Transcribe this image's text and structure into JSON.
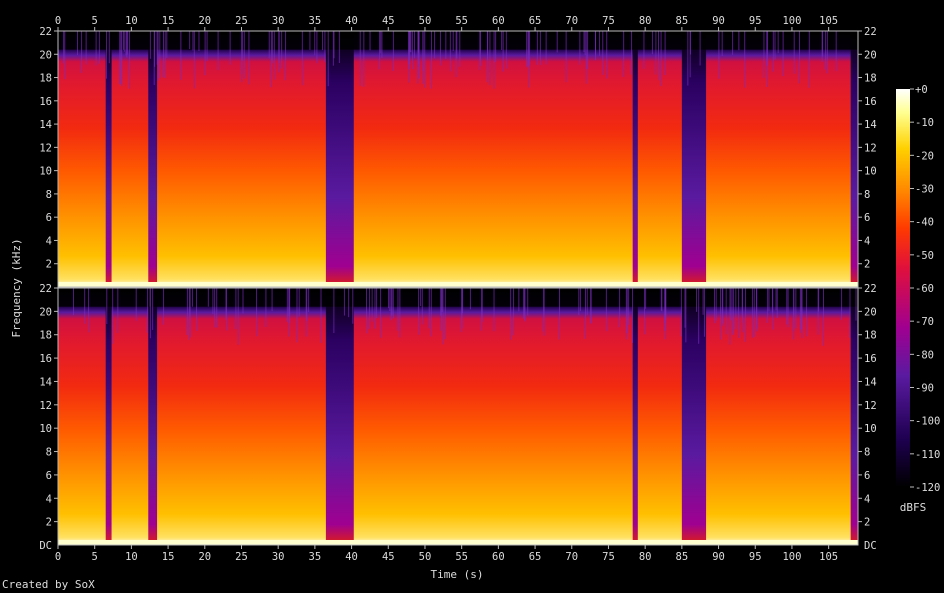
{
  "credit": "Created by SoX",
  "chart_data": {
    "type": "heatmap",
    "title": "",
    "xlabel": "Time (s)",
    "ylabel": "Frequency (kHz)",
    "colorbar_label": "dBFS",
    "xlim": [
      0,
      109
    ],
    "ylim_khz": [
      0,
      22
    ],
    "x_ticks": [
      0,
      5,
      10,
      15,
      20,
      25,
      30,
      35,
      40,
      45,
      50,
      55,
      60,
      65,
      70,
      75,
      80,
      85,
      90,
      95,
      100,
      105
    ],
    "y_ticks": [
      {
        "value": 22,
        "label": "22"
      },
      {
        "value": 20,
        "label": "20"
      },
      {
        "value": 18,
        "label": "18"
      },
      {
        "value": 16,
        "label": "16"
      },
      {
        "value": 14,
        "label": "14"
      },
      {
        "value": 12,
        "label": "12"
      },
      {
        "value": 10,
        "label": "10"
      },
      {
        "value": 8,
        "label": "8"
      },
      {
        "value": 6,
        "label": "6"
      },
      {
        "value": 4,
        "label": "4"
      },
      {
        "value": 2,
        "label": "2"
      }
    ],
    "y_bottom_label": "DC",
    "colorbar_range": [
      -120,
      0
    ],
    "colorbar_ticks": [
      {
        "value": 0,
        "label": "+0"
      },
      {
        "value": -10,
        "label": "-10"
      },
      {
        "value": -20,
        "label": "-20"
      },
      {
        "value": -30,
        "label": "-30"
      },
      {
        "value": -40,
        "label": "-40"
      },
      {
        "value": -50,
        "label": "-50"
      },
      {
        "value": -60,
        "label": "-60"
      },
      {
        "value": -70,
        "label": "-70"
      },
      {
        "value": -80,
        "label": "-80"
      },
      {
        "value": -90,
        "label": "-90"
      },
      {
        "value": -100,
        "label": "-100"
      },
      {
        "value": -110,
        "label": "-110"
      },
      {
        "value": -120,
        "label": "-120"
      }
    ],
    "channels": 2,
    "dark_gaps_s": [
      [
        6.5,
        7.3
      ],
      [
        12.3,
        13.5
      ],
      [
        36.5,
        40.3
      ],
      [
        78.3,
        79.0
      ],
      [
        85.0,
        88.3
      ],
      [
        108.0,
        109.0
      ]
    ],
    "colormap": [
      "#000000",
      "#1e0050",
      "#5a1aa0",
      "#a00090",
      "#e0103c",
      "#ff3a00",
      "#ff8c00",
      "#ffd000",
      "#ffff90",
      "#ffffff"
    ]
  }
}
